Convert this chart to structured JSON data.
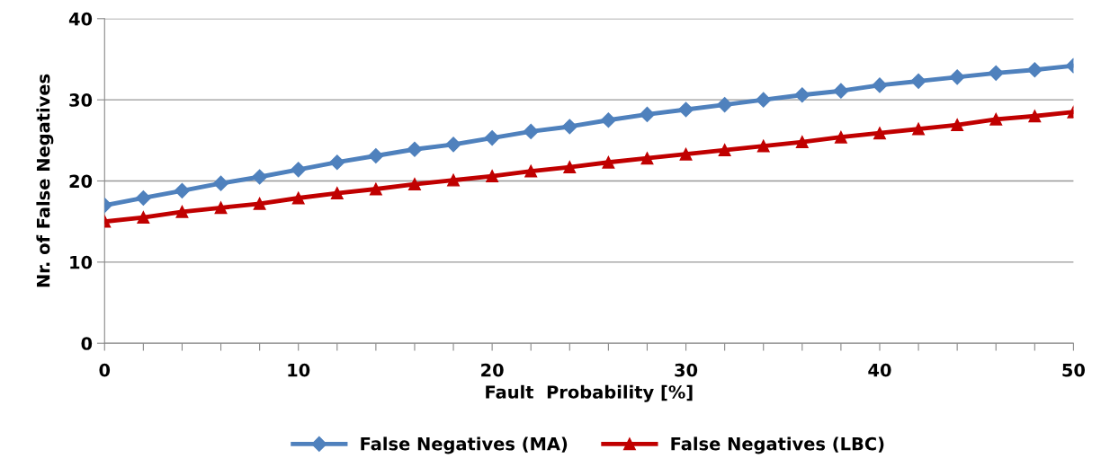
{
  "chart_data": {
    "type": "line",
    "xlabel": "Fault  Probability [%]",
    "ylabel": "Nr. of False Negatives",
    "x": [
      0,
      2,
      4,
      6,
      8,
      10,
      12,
      14,
      16,
      18,
      20,
      22,
      24,
      26,
      28,
      30,
      32,
      34,
      36,
      38,
      40,
      42,
      44,
      46,
      48,
      50
    ],
    "series": [
      {
        "name": "False Negatives (MA)",
        "color": "#4f81bd",
        "marker": "diamond",
        "values": [
          17,
          17.9,
          18.8,
          19.7,
          20.5,
          21.4,
          22.3,
          23.1,
          23.9,
          24.5,
          25.3,
          26.1,
          26.7,
          27.5,
          28.2,
          28.8,
          29.4,
          30,
          30.6,
          31.1,
          31.8,
          32.3,
          32.8,
          33.3,
          33.7,
          34.2
        ]
      },
      {
        "name": "False Negatives (LBC)",
        "color": "#c00000",
        "marker": "triangle",
        "values": [
          15,
          15.5,
          16.2,
          16.7,
          17.2,
          17.9,
          18.5,
          19,
          19.6,
          20.1,
          20.6,
          21.2,
          21.7,
          22.3,
          22.8,
          23.3,
          23.8,
          24.3,
          24.8,
          25.4,
          25.9,
          26.4,
          26.9,
          27.6,
          28,
          28.5
        ]
      }
    ],
    "xlim": [
      0,
      50
    ],
    "xticks": [
      0,
      {
        "value": 2,
        "label": null
      },
      {
        "value": 4,
        "label": null
      },
      {
        "value": 6,
        "label": null
      },
      {
        "value": 8,
        "label": null
      },
      10,
      {
        "value": 12,
        "label": null
      },
      {
        "value": 14,
        "label": null
      },
      {
        "value": 16,
        "label": null
      },
      {
        "value": 18,
        "label": null
      },
      20,
      {
        "value": 22,
        "label": null
      },
      {
        "value": 24,
        "label": null
      },
      {
        "value": 26,
        "label": null
      },
      {
        "value": 28,
        "label": null
      },
      30,
      {
        "value": 32,
        "label": null
      },
      {
        "value": 34,
        "label": null
      },
      {
        "value": 36,
        "label": null
      },
      {
        "value": 38,
        "label": null
      },
      40,
      {
        "value": 42,
        "label": null
      },
      {
        "value": 44,
        "label": null
      },
      {
        "value": 46,
        "label": null
      },
      {
        "value": 48,
        "label": null
      },
      50
    ],
    "ylim": [
      0,
      40
    ],
    "yticks": [
      0,
      10,
      20,
      30,
      40
    ],
    "grid": "y",
    "legend": "bottom",
    "line_style": "solid"
  }
}
